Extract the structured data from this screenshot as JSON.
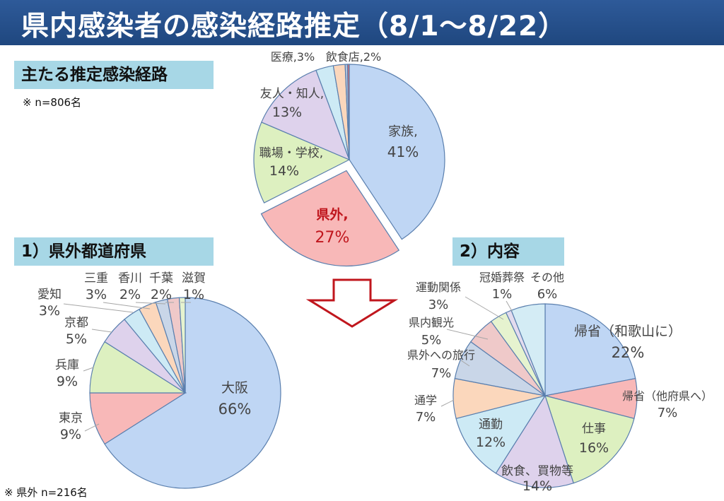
{
  "header": {
    "title": "県内感染者の感染経路推定（8/1～8/22）"
  },
  "sections": {
    "main_label": "主たる推定感染経路",
    "main_note": "※ n=806名",
    "pref_label": "1）県外都道府県",
    "pref_note": "※ 県外 n=216名",
    "detail_label": "2）内容"
  },
  "chart_data": [
    {
      "type": "pie",
      "title": "",
      "exploded": "県外",
      "series": [
        {
          "category": "家族",
          "value": 41,
          "percent_label": "41%",
          "color": "#bfd6f4"
        },
        {
          "category": "県外",
          "value": 27,
          "percent_label": "27%",
          "color": "#f8b8b8",
          "label_color": "#c0161d"
        },
        {
          "category": "職場・学校",
          "value": 14,
          "percent_label": "14%",
          "color": "#ddf0c0"
        },
        {
          "category": "友人・知人",
          "value": 13,
          "percent_label": "13%",
          "color": "#ded2ec"
        },
        {
          "category": "医療",
          "value": 3,
          "percent_label": "3%",
          "color": "#cdeaf5"
        },
        {
          "category": "飲食店",
          "value": 2,
          "percent_label": "2%",
          "color": "#fbd7bc"
        },
        {
          "category": "other-a",
          "value": 0.4,
          "percent_label": "",
          "color": "#b6c8e0"
        },
        {
          "category": "other-b",
          "value": 0.3,
          "percent_label": "",
          "color": "#d86a6a"
        }
      ]
    },
    {
      "type": "pie",
      "title": "",
      "series": [
        {
          "category": "大阪",
          "value": 66,
          "percent_label": "66%",
          "color": "#bfd6f4"
        },
        {
          "category": "東京",
          "value": 9,
          "percent_label": "9%",
          "color": "#f8b8b8"
        },
        {
          "category": "兵庫",
          "value": 9,
          "percent_label": "9%",
          "color": "#ddf0c0"
        },
        {
          "category": "京都",
          "value": 5,
          "percent_label": "5%",
          "color": "#ded2ec"
        },
        {
          "category": "愛知",
          "value": 3,
          "percent_label": "3%",
          "color": "#cdeaf5"
        },
        {
          "category": "三重",
          "value": 3,
          "percent_label": "3%",
          "color": "#fbd7bc"
        },
        {
          "category": "香川",
          "value": 2,
          "percent_label": "2%",
          "color": "#c9d6e8"
        },
        {
          "category": "千葉",
          "value": 2,
          "percent_label": "2%",
          "color": "#efc9c9"
        },
        {
          "category": "滋賀",
          "value": 1,
          "percent_label": "1%",
          "color": "#e6f3cf"
        }
      ]
    },
    {
      "type": "pie",
      "title": "",
      "series": [
        {
          "category": "帰省（和歌山に）",
          "value": 22,
          "percent_label": "22%",
          "color": "#bfd6f4"
        },
        {
          "category": "帰省（他府県へ）",
          "value": 7,
          "percent_label": "7%",
          "color": "#f8b8b8"
        },
        {
          "category": "仕事",
          "value": 16,
          "percent_label": "16%",
          "color": "#ddf0c0"
        },
        {
          "category": "飲食、買物等",
          "value": 14,
          "percent_label": "14%",
          "color": "#ded2ec"
        },
        {
          "category": "通勤",
          "value": 12,
          "percent_label": "12%",
          "color": "#cdeaf5"
        },
        {
          "category": "通学",
          "value": 7,
          "percent_label": "7%",
          "color": "#fbd7bc"
        },
        {
          "category": "県外への旅行",
          "value": 7,
          "percent_label": "7%",
          "color": "#c9d6e8"
        },
        {
          "category": "県内観光",
          "value": 5,
          "percent_label": "5%",
          "color": "#efc9c9"
        },
        {
          "category": "運動関係",
          "value": 3,
          "percent_label": "3%",
          "color": "#e6f3cf"
        },
        {
          "category": "冠婚葬祭",
          "value": 1,
          "percent_label": "1%",
          "color": "#e3dbee"
        },
        {
          "category": "その他",
          "value": 6,
          "percent_label": "6%",
          "color": "#d4ecf5"
        }
      ]
    }
  ]
}
